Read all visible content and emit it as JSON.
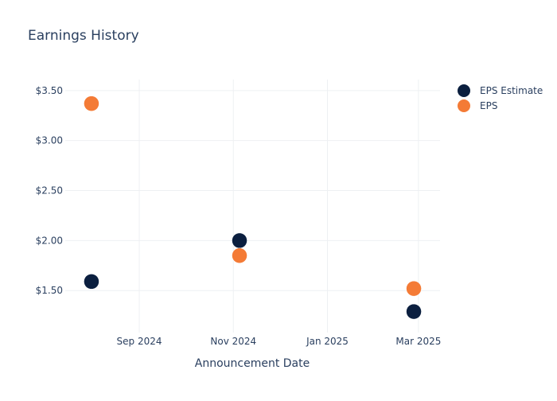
{
  "chart_data": {
    "type": "scatter",
    "title": "Earnings History",
    "xlabel": "Announcement Date",
    "ylabel": "",
    "x_ticks": [
      {
        "date": "2024-09-01",
        "label": "Sep 2024"
      },
      {
        "date": "2024-11-01",
        "label": "Nov 2024"
      },
      {
        "date": "2025-01-01",
        "label": "Jan 2025"
      },
      {
        "date": "2025-03-01",
        "label": "Mar 2025"
      }
    ],
    "xlim": [
      "2024-07-15",
      "2025-03-15"
    ],
    "y_ticks": [
      {
        "value": 1.5,
        "label": "$1.50"
      },
      {
        "value": 2.0,
        "label": "$2.00"
      },
      {
        "value": 2.5,
        "label": "$2.50"
      },
      {
        "value": 3.0,
        "label": "$3.00"
      },
      {
        "value": 3.5,
        "label": "$3.50"
      }
    ],
    "ylim": [
      1.08,
      3.61
    ],
    "grid": true,
    "legend_position": "top-right",
    "series": [
      {
        "name": "EPS Estimate",
        "color": "#0b1f3f",
        "points": [
          {
            "x": "2024-08-01",
            "y": 1.59
          },
          {
            "x": "2024-11-05",
            "y": 2.0
          },
          {
            "x": "2025-02-26",
            "y": 1.29
          }
        ]
      },
      {
        "name": "EPS",
        "color": "#f47b36",
        "points": [
          {
            "x": "2024-08-01",
            "y": 3.37
          },
          {
            "x": "2024-11-05",
            "y": 1.85
          },
          {
            "x": "2025-02-26",
            "y": 1.52
          }
        ]
      }
    ]
  }
}
